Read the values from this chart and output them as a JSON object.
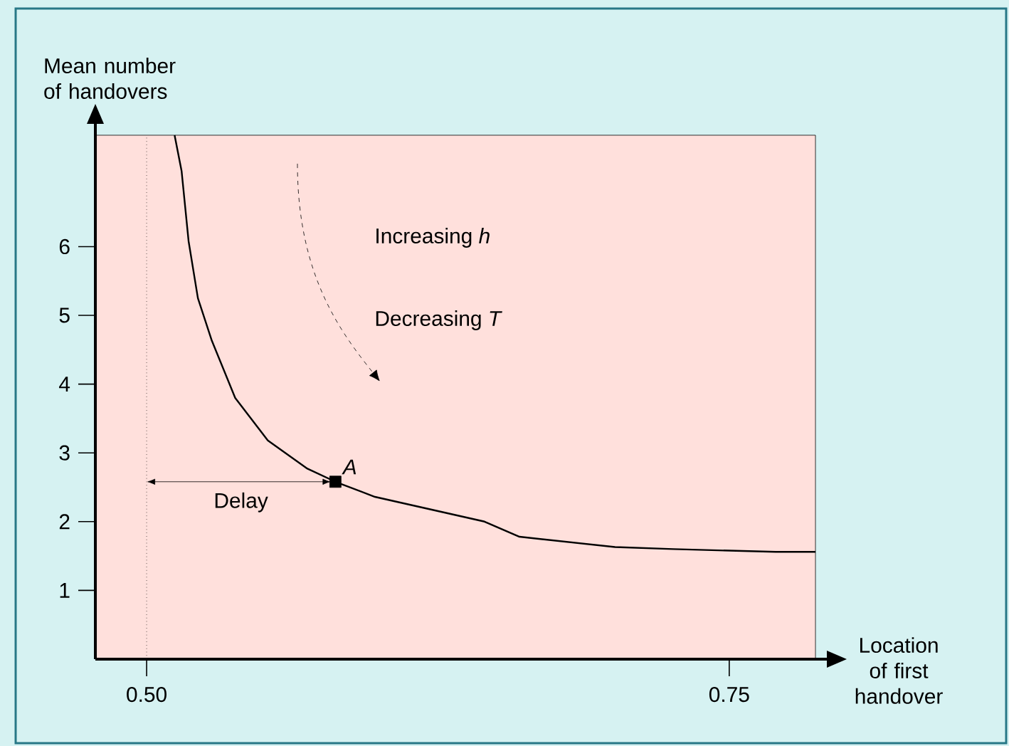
{
  "chart_data": {
    "type": "line",
    "xlabel": "Location of first handover",
    "ylabel": "Mean number of handovers",
    "xlim": [
      0.478,
      0.787
    ],
    "ylim": [
      0,
      7.62
    ],
    "xticks": [
      {
        "value": 0.5,
        "label": "0.50"
      },
      {
        "value": 0.75,
        "label": "0.75"
      }
    ],
    "yticks": [
      1,
      2,
      3,
      4,
      5,
      6
    ],
    "line_style": "solid",
    "series": [
      {
        "color": "#000000",
        "marker": "none",
        "x": [
          0.512,
          0.515,
          0.518,
          0.522,
          0.528,
          0.538,
          0.552,
          0.569,
          0.581,
          0.598,
          0.645,
          0.66,
          0.701,
          0.726,
          0.77,
          0.787
        ],
        "values": [
          7.62,
          7.1,
          6.08,
          5.25,
          4.63,
          3.8,
          3.18,
          2.77,
          2.58,
          2.36,
          2.0,
          1.78,
          1.63,
          1.6,
          1.56,
          1.56
        ]
      },
      {
        "type": "scatter",
        "color": "#000000",
        "marker": "square",
        "x": [
          0.581
        ],
        "values": [
          2.58
        ]
      }
    ],
    "ref_lines": [
      {
        "axis": "x",
        "value": 0.5,
        "line_style": "dotted",
        "color": "#000000"
      }
    ],
    "annotations": [
      {
        "text": "A",
        "x": 0.581,
        "y": 2.58
      },
      "Delay",
      "Increasing *h*",
      "Decreasing *T*"
    ]
  }
}
